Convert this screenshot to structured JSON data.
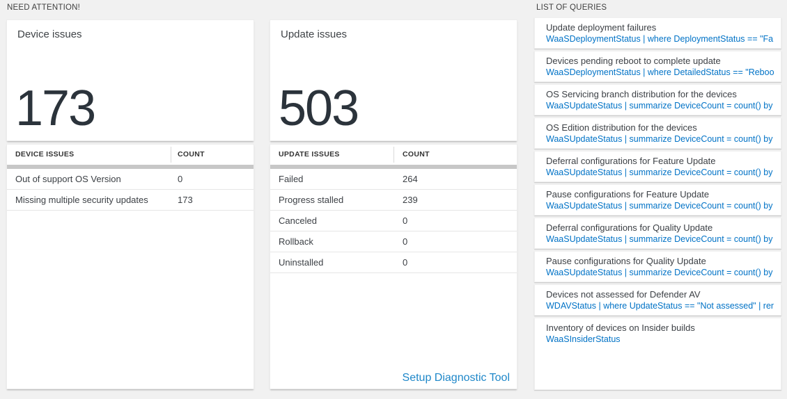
{
  "colors": {
    "background": "#f1f1f1",
    "tile": "#ffffff",
    "query_blue": "#0072c6",
    "link_blue": "#1e87c9",
    "number_dark": "#2b333b",
    "scrollbar_gray": "#c7c7c7"
  },
  "sections": {
    "need_attention": "NEED ATTENTION!",
    "list_of_queries": "LIST OF QUERIES"
  },
  "device_tile": {
    "title": "Device issues",
    "count": "173",
    "table": {
      "headers": [
        "DEVICE ISSUES",
        "COUNT"
      ],
      "rows": [
        {
          "label": "Out of support OS Version",
          "count": "0"
        },
        {
          "label": "Missing multiple security updates",
          "count": "173"
        }
      ]
    }
  },
  "update_tile": {
    "title": "Update issues",
    "count": "503",
    "table": {
      "headers": [
        "UPDATE ISSUES",
        "COUNT"
      ],
      "rows": [
        {
          "label": "Failed",
          "count": "264"
        },
        {
          "label": "Progress stalled",
          "count": "239"
        },
        {
          "label": "Canceled",
          "count": "0"
        },
        {
          "label": "Rollback",
          "count": "0"
        },
        {
          "label": "Uninstalled",
          "count": "0"
        }
      ]
    },
    "footer_link": "Setup Diagnostic Tool"
  },
  "queries": {
    "items": [
      {
        "title": "Update deployment failures",
        "query": "WaaSDeploymentStatus | where DeploymentStatus == \"Failed\" |..."
      },
      {
        "title": "Devices pending reboot to complete update",
        "query": "WaaSDeploymentStatus | where DetailedStatus == \"Reboot pend..."
      },
      {
        "title": "OS Servicing branch distribution for the devices",
        "query": "WaaSUpdateStatus | summarize DeviceCount = count() by OSSer..."
      },
      {
        "title": "OS Edition distribution for the devices",
        "query": "WaaSUpdateStatus | summarize DeviceCount = count() by OSEdit..."
      },
      {
        "title": "Deferral configurations for Feature Update",
        "query": "WaaSUpdateStatus | summarize DeviceCount = count() by Featur..."
      },
      {
        "title": "Pause configurations for Feature Update",
        "query": "WaaSUpdateStatus | summarize DeviceCount = count() by Featur..."
      },
      {
        "title": "Deferral configurations for Quality Update",
        "query": "WaaSUpdateStatus | summarize DeviceCount = count() by Qualit..."
      },
      {
        "title": "Pause configurations for Quality Update",
        "query": "WaaSUpdateStatus | summarize DeviceCount = count() by Qualit..."
      },
      {
        "title": "Devices not assessed for Defender AV",
        "query": "WDAVStatus | where UpdateStatus == \"Not assessed\" | render ta..."
      },
      {
        "title": "Inventory of devices on Insider builds",
        "query": "WaaSInsiderStatus"
      }
    ]
  }
}
